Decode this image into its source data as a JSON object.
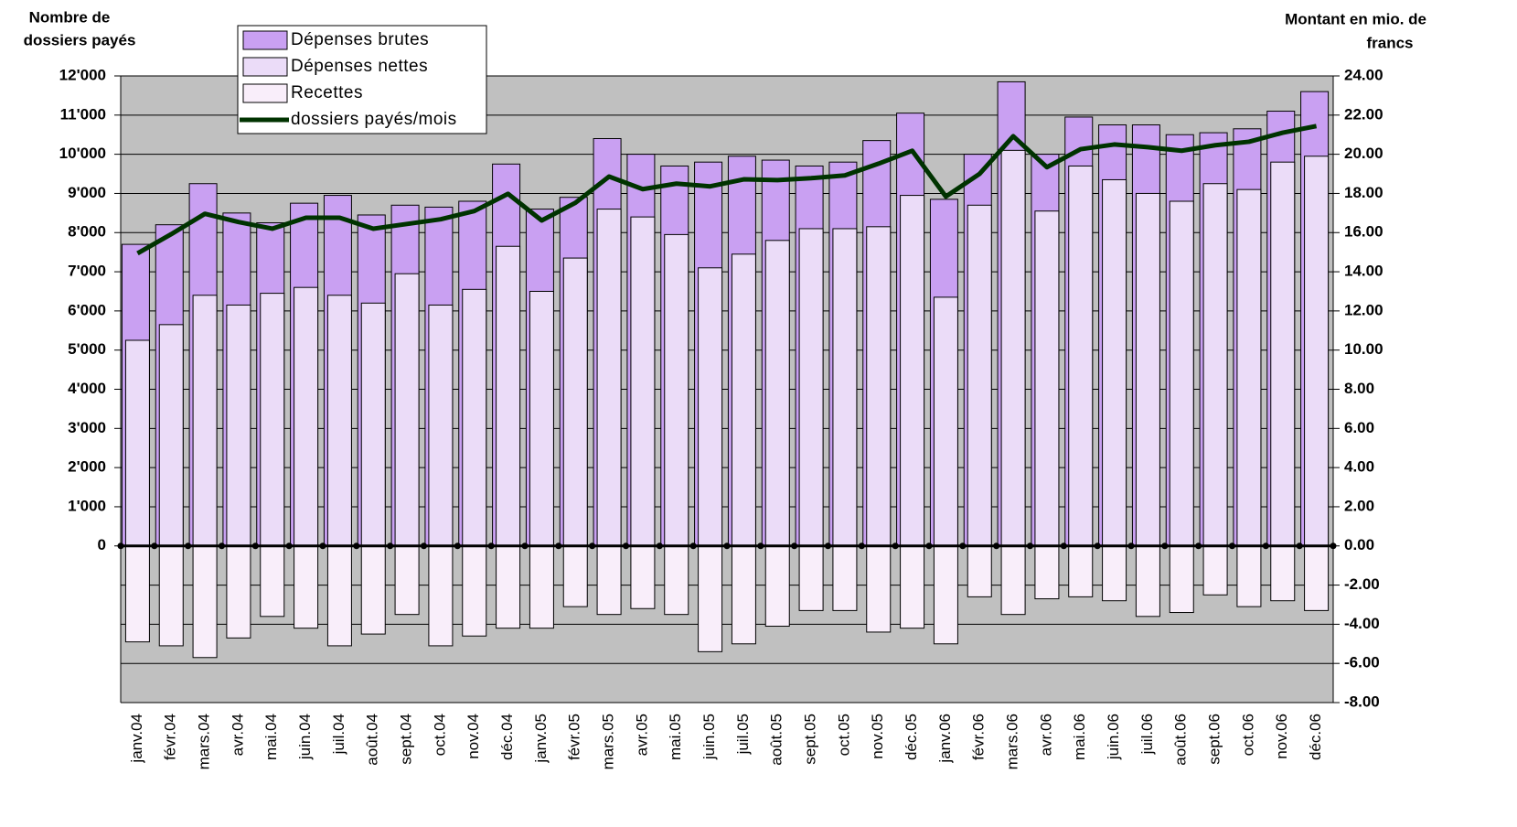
{
  "chart_data": {
    "type": "bar",
    "y_label": [
      "Nombre de",
      "dossiers payés"
    ],
    "y2_label": [
      "Montant en mio. de",
      "francs"
    ],
    "categories": [
      "janv.04",
      "févr.04",
      "mars.04",
      "avr.04",
      "mai.04",
      "juin.04",
      "juil.04",
      "août.04",
      "sept.04",
      "oct.04",
      "nov.04",
      "déc.04",
      "janv.05",
      "févr.05",
      "mars.05",
      "avr.05",
      "mai.05",
      "juin.05",
      "juil.05",
      "août.05",
      "sept.05",
      "oct.05",
      "nov.05",
      "déc.05",
      "janv.06",
      "févr.06",
      "mars.06",
      "avr.06",
      "mai.06",
      "juin.06",
      "juil.06",
      "août.06",
      "sept.06",
      "oct.06",
      "nov.06",
      "déc.06"
    ],
    "series": [
      {
        "name": "Dépenses brutes",
        "type": "bar",
        "axis": "y2",
        "color": "#c9a0f2",
        "values": [
          15.4,
          16.4,
          18.5,
          17.0,
          16.5,
          17.5,
          17.9,
          16.9,
          17.4,
          17.3,
          17.6,
          19.5,
          17.2,
          17.8,
          20.8,
          20.0,
          19.4,
          19.6,
          19.9,
          19.7,
          19.4,
          19.6,
          20.7,
          22.1,
          17.7,
          20.0,
          23.7,
          20.0,
          21.9,
          21.5,
          21.5,
          21.0,
          21.1,
          21.3,
          22.2,
          23.2
        ]
      },
      {
        "name": "Dépenses nettes",
        "type": "bar",
        "axis": "y2",
        "color": "#ebdcf8",
        "values": [
          10.5,
          11.3,
          12.8,
          12.3,
          12.9,
          13.2,
          12.8,
          12.4,
          13.9,
          12.3,
          13.1,
          15.3,
          13.0,
          14.7,
          17.2,
          16.8,
          15.9,
          14.2,
          14.9,
          15.6,
          16.2,
          16.2,
          16.3,
          17.9,
          12.7,
          17.4,
          20.2,
          17.1,
          19.4,
          18.7,
          18.0,
          17.6,
          18.5,
          18.2,
          19.6,
          19.9
        ]
      },
      {
        "name": "Recettes",
        "type": "bar",
        "axis": "y2",
        "color": "#f9eefa",
        "values": [
          -4.9,
          -5.1,
          -5.7,
          -4.7,
          -3.6,
          -4.2,
          -5.1,
          -4.5,
          -3.5,
          -5.1,
          -4.6,
          -4.2,
          -4.2,
          -3.1,
          -3.5,
          -3.2,
          -3.5,
          -5.4,
          -5.0,
          -4.1,
          -3.3,
          -3.3,
          -4.4,
          -4.2,
          -5.0,
          -2.6,
          -3.5,
          -2.7,
          -2.6,
          -2.8,
          -3.6,
          -3.4,
          -2.5,
          -3.1,
          -2.8,
          -3.3
        ]
      },
      {
        "name": "dossiers payés/mois",
        "type": "line",
        "color": "#003300",
        "values": [
          7470,
          7960,
          8480,
          8270,
          8100,
          8380,
          8380,
          8100,
          8220,
          8340,
          8550,
          8990,
          8310,
          8760,
          9430,
          9110,
          9250,
          9180,
          9360,
          9340,
          9390,
          9460,
          9760,
          10090,
          8920,
          9500,
          10460,
          9670,
          10130,
          10250,
          10180,
          10090,
          10230,
          10320,
          10550,
          10720
        ]
      }
    ],
    "ylim": [
      -4000,
      12000
    ],
    "yticks": [
      {
        "value": 0,
        "label": "0"
      },
      {
        "value": 1000,
        "label": "1'000"
      },
      {
        "value": 2000,
        "label": "2'000"
      },
      {
        "value": 3000,
        "label": "3'000"
      },
      {
        "value": 4000,
        "label": "4'000"
      },
      {
        "value": 5000,
        "label": "5'000"
      },
      {
        "value": 6000,
        "label": "6'000"
      },
      {
        "value": 7000,
        "label": "7'000"
      },
      {
        "value": 8000,
        "label": "8'000"
      },
      {
        "value": 9000,
        "label": "9'000"
      },
      {
        "value": 10000,
        "label": "10'000"
      },
      {
        "value": 11000,
        "label": "11'000"
      },
      {
        "value": 12000,
        "label": "12'000"
      }
    ],
    "y2lim": [
      -8,
      24
    ],
    "y2ticks": [
      {
        "value": -8,
        "label": "-8.00"
      },
      {
        "value": -6,
        "label": "-6.00"
      },
      {
        "value": -4,
        "label": "-4.00"
      },
      {
        "value": -2,
        "label": "-2.00"
      },
      {
        "value": 0,
        "label": "0.00"
      },
      {
        "value": 2,
        "label": "2.00"
      },
      {
        "value": 4,
        "label": "4.00"
      },
      {
        "value": 6,
        "label": "6.00"
      },
      {
        "value": 8,
        "label": "8.00"
      },
      {
        "value": 10,
        "label": "10.00"
      },
      {
        "value": 12,
        "label": "12.00"
      },
      {
        "value": 14,
        "label": "14.00"
      },
      {
        "value": 16,
        "label": "16.00"
      },
      {
        "value": 18,
        "label": "18.00"
      },
      {
        "value": 20,
        "label": "20.00"
      },
      {
        "value": 22,
        "label": "22.00"
      },
      {
        "value": 24,
        "label": "24.00"
      }
    ],
    "grid": true,
    "legend": "top-left",
    "background": "#c0c0c0"
  }
}
